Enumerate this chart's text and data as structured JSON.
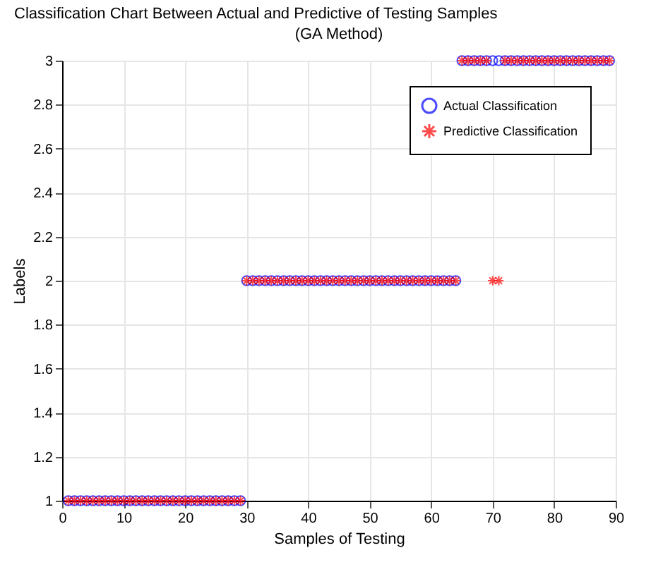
{
  "chart_data": {
    "type": "scatter",
    "title": "Classification Chart Between Actual and Predictive of Testing Samples",
    "subtitle": "(GA Method)",
    "xlabel": "Samples of Testing",
    "ylabel": "Labels",
    "x": [
      1,
      2,
      3,
      4,
      5,
      6,
      7,
      8,
      9,
      10,
      11,
      12,
      13,
      14,
      15,
      16,
      17,
      18,
      19,
      20,
      21,
      22,
      23,
      24,
      25,
      26,
      27,
      28,
      29,
      30,
      31,
      32,
      33,
      34,
      35,
      36,
      37,
      38,
      39,
      40,
      41,
      42,
      43,
      44,
      45,
      46,
      47,
      48,
      49,
      50,
      51,
      52,
      53,
      54,
      55,
      56,
      57,
      58,
      59,
      60,
      61,
      62,
      63,
      64,
      65,
      66,
      67,
      68,
      69,
      70,
      71,
      72,
      73,
      74,
      75,
      76,
      77,
      78,
      79,
      80,
      81,
      82,
      83,
      84,
      85,
      86,
      87,
      88,
      89
    ],
    "series": [
      {
        "name": "Actual Classification",
        "color": "#0000ff",
        "marker": "circle",
        "values": [
          1,
          1,
          1,
          1,
          1,
          1,
          1,
          1,
          1,
          1,
          1,
          1,
          1,
          1,
          1,
          1,
          1,
          1,
          1,
          1,
          1,
          1,
          1,
          1,
          1,
          1,
          1,
          1,
          1,
          2,
          2,
          2,
          2,
          2,
          2,
          2,
          2,
          2,
          2,
          2,
          2,
          2,
          2,
          2,
          2,
          2,
          2,
          2,
          2,
          2,
          2,
          2,
          2,
          2,
          2,
          2,
          2,
          2,
          2,
          2,
          2,
          2,
          2,
          2,
          3,
          3,
          3,
          3,
          3,
          3,
          3,
          3,
          3,
          3,
          3,
          3,
          3,
          3,
          3,
          3,
          3,
          3,
          3,
          3,
          3,
          3,
          3,
          3,
          3
        ]
      },
      {
        "name": "Predictive Classification",
        "color": "#ff0000",
        "marker": "cross",
        "values": [
          1,
          1,
          1,
          1,
          1,
          1,
          1,
          1,
          1,
          1,
          1,
          1,
          1,
          1,
          1,
          1,
          1,
          1,
          1,
          1,
          1,
          1,
          1,
          1,
          1,
          1,
          1,
          1,
          1,
          2,
          2,
          2,
          2,
          2,
          2,
          2,
          2,
          2,
          2,
          2,
          2,
          2,
          2,
          2,
          2,
          2,
          2,
          2,
          2,
          2,
          2,
          2,
          2,
          2,
          2,
          2,
          2,
          2,
          2,
          2,
          2,
          2,
          2,
          2,
          3,
          3,
          3,
          3,
          3,
          2,
          2,
          3,
          3,
          3,
          3,
          3,
          3,
          3,
          3,
          3,
          3,
          3,
          3,
          3,
          3,
          3,
          3,
          3,
          3
        ]
      }
    ],
    "xlim": [
      0,
      90
    ],
    "xticks": [
      0,
      10,
      20,
      30,
      40,
      50,
      60,
      70,
      80,
      90
    ],
    "ylim": [
      1,
      3
    ],
    "yticks": [
      1,
      1.2,
      1.4,
      1.6,
      1.8,
      2,
      2.2,
      2.4,
      2.6,
      2.8,
      3
    ],
    "grid": true,
    "legend": "top right"
  }
}
